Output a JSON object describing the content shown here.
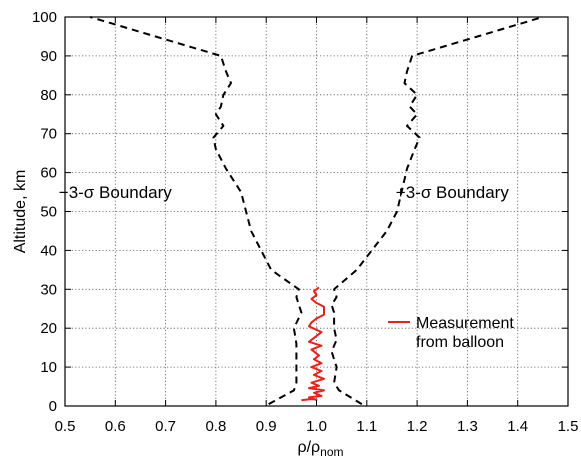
{
  "chart_data": {
    "type": "line",
    "title": "",
    "xlabel_base": "ρ/ρ",
    "xlabel_sub": "nom",
    "ylabel": "Altitude, km",
    "xlim": [
      0.5,
      1.5
    ],
    "ylim": [
      0,
      100
    ],
    "xticks": [
      0.5,
      0.6,
      0.7,
      0.8,
      0.9,
      1.0,
      1.1,
      1.2,
      1.3,
      1.4,
      1.5
    ],
    "xtick_labels": [
      "0.5",
      "0.6",
      "0.7",
      "0.8",
      "0.9",
      "1.0",
      "1.1",
      "1.2",
      "1.3",
      "1.4",
      "1.5"
    ],
    "yticks": [
      0,
      10,
      20,
      30,
      40,
      50,
      60,
      70,
      80,
      90,
      100
    ],
    "ytick_labels": [
      "0",
      "10",
      "20",
      "30",
      "40",
      "50",
      "60",
      "70",
      "80",
      "90",
      "100"
    ],
    "grid": true,
    "legend_position": "right-center",
    "series": [
      {
        "name": "Measurement from balloon",
        "color": "#e8211b",
        "style": "solid",
        "legend_lines": [
          "Measurement",
          "from balloon"
        ],
        "points": [
          [
            0.97,
            1.5
          ],
          [
            0.99,
            1.8
          ],
          [
            1.0,
            1.6
          ],
          [
            0.985,
            2.2
          ],
          [
            1.01,
            2.6
          ],
          [
            0.995,
            3.4
          ],
          [
            1.015,
            4.0
          ],
          [
            0.985,
            4.6
          ],
          [
            1.005,
            5.2
          ],
          [
            0.99,
            6.0
          ],
          [
            1.015,
            7.0
          ],
          [
            0.995,
            8.0
          ],
          [
            1.01,
            9.0
          ],
          [
            0.99,
            10.0
          ],
          [
            1.01,
            11.0
          ],
          [
            0.995,
            12.0
          ],
          [
            1.005,
            13.0
          ],
          [
            0.99,
            14.5
          ],
          [
            1.01,
            15.5
          ],
          [
            0.985,
            16.5
          ],
          [
            0.995,
            17.5
          ],
          [
            1.01,
            19.0
          ],
          [
            0.985,
            20.5
          ],
          [
            0.99,
            21.5
          ],
          [
            1.0,
            22.5
          ],
          [
            1.015,
            23.5
          ],
          [
            1.015,
            25.5
          ],
          [
            1.0,
            26.5
          ],
          [
            0.99,
            27.5
          ],
          [
            1.0,
            28.5
          ],
          [
            0.995,
            29.5
          ],
          [
            1.005,
            30.5
          ]
        ]
      },
      {
        "name": "−3-σ Boundary",
        "color": "#000000",
        "style": "dashed",
        "points": [
          [
            0.905,
            0.5
          ],
          [
            0.955,
            4.0
          ],
          [
            0.96,
            6
          ],
          [
            0.96,
            16
          ],
          [
            0.955,
            20
          ],
          [
            0.97,
            24
          ],
          [
            0.965,
            26
          ],
          [
            0.96,
            28
          ],
          [
            0.965,
            30
          ],
          [
            0.91,
            35
          ],
          [
            0.87,
            45
          ],
          [
            0.85,
            55
          ],
          [
            0.82,
            61
          ],
          [
            0.8,
            66
          ],
          [
            0.795,
            69
          ],
          [
            0.815,
            72
          ],
          [
            0.8,
            75
          ],
          [
            0.81,
            77
          ],
          [
            0.815,
            80
          ],
          [
            0.83,
            83
          ],
          [
            0.82,
            86
          ],
          [
            0.81,
            90
          ],
          [
            0.68,
            95
          ],
          [
            0.55,
            100
          ]
        ]
      },
      {
        "name": "+3-σ Boundary",
        "color": "#000000",
        "style": "dashed",
        "points": [
          [
            1.09,
            0.5
          ],
          [
            1.045,
            4.0
          ],
          [
            1.035,
            6
          ],
          [
            1.04,
            10
          ],
          [
            1.03,
            14
          ],
          [
            1.04,
            17
          ],
          [
            1.035,
            20
          ],
          [
            1.035,
            24
          ],
          [
            1.03,
            26
          ],
          [
            1.04,
            28
          ],
          [
            1.035,
            30
          ],
          [
            1.08,
            35
          ],
          [
            1.14,
            45
          ],
          [
            1.16,
            50
          ],
          [
            1.18,
            61
          ],
          [
            1.195,
            66
          ],
          [
            1.205,
            69
          ],
          [
            1.18,
            72
          ],
          [
            1.2,
            75
          ],
          [
            1.185,
            77
          ],
          [
            1.2,
            80
          ],
          [
            1.175,
            83
          ],
          [
            1.18,
            86
          ],
          [
            1.19,
            90
          ],
          [
            1.32,
            95
          ],
          [
            1.45,
            100
          ]
        ]
      }
    ],
    "annotations": [
      {
        "text": "−3-σ Boundary",
        "x": 0.6,
        "y": 53.5
      },
      {
        "text": "+3-σ Boundary",
        "x": 1.27,
        "y": 53.5
      }
    ]
  }
}
